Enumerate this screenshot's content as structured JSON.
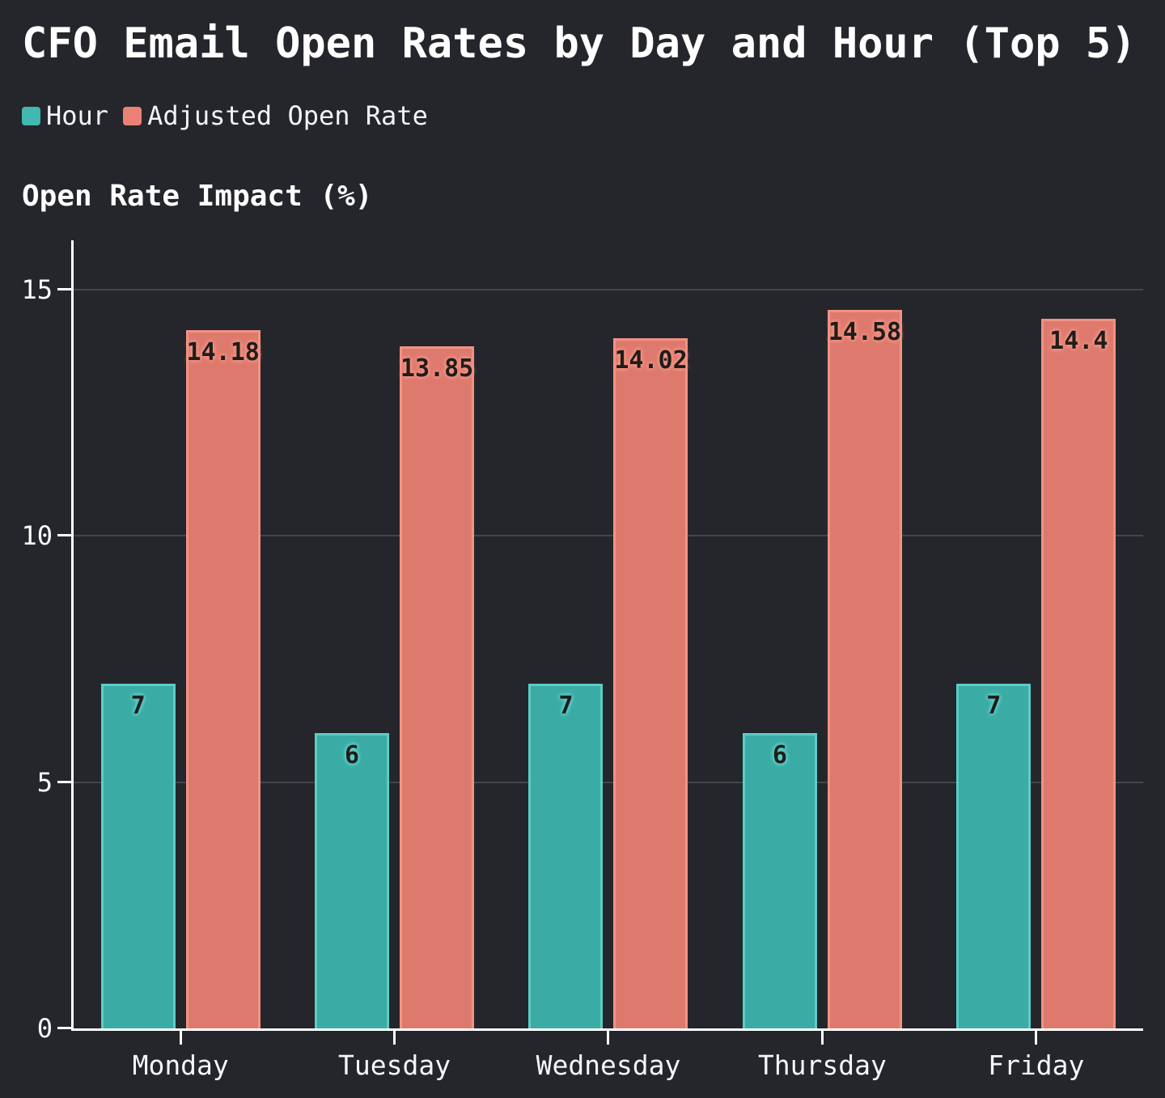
{
  "title": "CFO Email Open Rates by Day and Hour (Top 5)",
  "axis_title": "Open Rate Impact (%)",
  "colors": {
    "background": "#24262b",
    "gridline": "#44464c",
    "axis_line": "#ffffff",
    "text": "#ffffff",
    "bar_value_text": "#1f1d1b"
  },
  "chart_data": {
    "type": "bar",
    "title": "CFO Email Open Rates by Day and Hour (Top 5)",
    "xlabel": "",
    "ylabel": "Open Rate Impact (%)",
    "categories": [
      "Monday",
      "Tuesday",
      "Wednesday",
      "Thursday",
      "Friday"
    ],
    "series": [
      {
        "name": "Hour",
        "values": [
          7,
          6,
          7,
          6,
          7
        ],
        "fill": "#3BABA5",
        "stroke": "#5BCDC5",
        "swatch": "#41B8B1"
      },
      {
        "name": "Adjusted Open Rate",
        "values": [
          14.18,
          13.85,
          14.02,
          14.58,
          14.4
        ],
        "fill": "#DE7A6D",
        "stroke": "#F29283",
        "swatch": "#EB8174"
      }
    ],
    "ylim": [
      0,
      16
    ],
    "yticks": [
      0,
      5,
      10,
      15
    ],
    "grid": true,
    "legend_position": "top-left",
    "value_labels": "inside-top"
  }
}
